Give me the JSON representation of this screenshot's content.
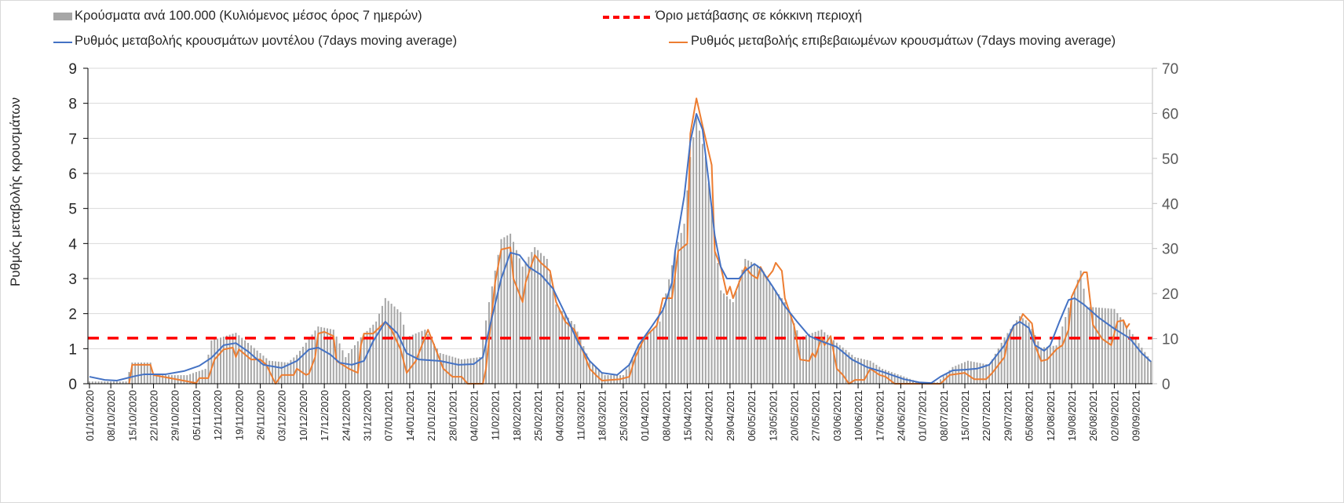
{
  "legend": {
    "bars": "Κρούσματα ανά 100.000 (Κυλιόμενος μέσος όρος 7 ημερών)",
    "threshold": "Όριο μετάβασης σε κόκκινη περιοχή",
    "model": "Ρυθμός μεταβολής κρουσμάτων μοντέλου (7days moving average)",
    "confirmed": "Ρυθμός μεταβολής επιβεβαιωμένων κρουσμάτων (7days moving average)"
  },
  "colors": {
    "bars": "#a6a6a6",
    "threshold": "#ff0000",
    "model": "#4472c4",
    "confirmed": "#ed7d31",
    "grid": "#d9d9d9",
    "axis_text": "#595959"
  },
  "chart_data": {
    "type": "bar+line",
    "title": "",
    "ylabel": "Ρυθμός μεταβολής κρουσμάτων",
    "ylabel_right": "",
    "xlabel": "",
    "x_unit": "days since 01/10/2020",
    "xlim": [
      -0.5,
      348.5
    ],
    "ylim_left": [
      0,
      9
    ],
    "ylim_right": [
      0,
      70
    ],
    "left_ticks": [
      "0",
      "1",
      "2",
      "3",
      "4",
      "5",
      "6",
      "7",
      "8",
      "9"
    ],
    "right_ticks": [
      "0",
      "10",
      "20",
      "30",
      "40",
      "50",
      "60",
      "70"
    ],
    "x_tick_step_days": 7,
    "x_ticks": [
      "01/10/2020",
      "08/10/2020",
      "15/10/2020",
      "22/10/2020",
      "29/10/2020",
      "05/11/2020",
      "12/11/2020",
      "19/11/2020",
      "26/11/2020",
      "03/12/2020",
      "10/12/2020",
      "17/12/2020",
      "24/12/2020",
      "31/12/2020",
      "07/01/2021",
      "14/01/2021",
      "21/01/2021",
      "28/01/2021",
      "04/02/2021",
      "11/02/2021",
      "18/02/2021",
      "25/02/2021",
      "04/03/2021",
      "11/03/2021",
      "18/03/2021",
      "25/03/2021",
      "01/04/2021",
      "08/04/2021",
      "15/04/2021",
      "22/04/2021",
      "29/04/2021",
      "06/05/2021",
      "13/05/2021",
      "20/05/2021",
      "27/05/2021",
      "03/06/2021",
      "10/06/2021",
      "17/06/2021",
      "24/06/2021",
      "01/07/2021",
      "08/07/2021",
      "15/07/2021",
      "22/07/2021",
      "29/07/2021",
      "05/08/2021",
      "12/08/2021",
      "19/08/2021",
      "26/08/2021",
      "02/09/2021",
      "09/09/2021"
    ],
    "threshold_left": 1.3,
    "bars_right_axis": {
      "last_day": 348,
      "points": [
        [
          0,
          0.5
        ],
        [
          12,
          0.5
        ],
        [
          14,
          4.7
        ],
        [
          20,
          4.7
        ],
        [
          21,
          1.9
        ],
        [
          32,
          1.9
        ],
        [
          38,
          3.3
        ],
        [
          40,
          9.6
        ],
        [
          48,
          11.3
        ],
        [
          53,
          8.5
        ],
        [
          59,
          5.1
        ],
        [
          65,
          4.7
        ],
        [
          68,
          6.4
        ],
        [
          75,
          12.7
        ],
        [
          80,
          12.0
        ],
        [
          84,
          5.9
        ],
        [
          89,
          10.3
        ],
        [
          94,
          13.8
        ],
        [
          97,
          19.0
        ],
        [
          102,
          15.9
        ],
        [
          104,
          10.3
        ],
        [
          110,
          12.0
        ],
        [
          115,
          6.8
        ],
        [
          122,
          5.4
        ],
        [
          128,
          5.9
        ],
        [
          131,
          18.1
        ],
        [
          135,
          32.1
        ],
        [
          138,
          33.3
        ],
        [
          142,
          26.0
        ],
        [
          146,
          30.3
        ],
        [
          150,
          27.7
        ],
        [
          153,
          17.6
        ],
        [
          159,
          13.2
        ],
        [
          164,
          5.1
        ],
        [
          169,
          1.9
        ],
        [
          175,
          1.9
        ],
        [
          180,
          8.5
        ],
        [
          187,
          13.8
        ],
        [
          192,
          29.4
        ],
        [
          195,
          35.5
        ],
        [
          197,
          50.3
        ],
        [
          199,
          59.1
        ],
        [
          202,
          50.3
        ],
        [
          205,
          32.9
        ],
        [
          207,
          20.7
        ],
        [
          211,
          18.1
        ],
        [
          215,
          27.7
        ],
        [
          220,
          26.0
        ],
        [
          224,
          21.6
        ],
        [
          228,
          18.1
        ],
        [
          233,
          10.3
        ],
        [
          240,
          12.0
        ],
        [
          245,
          9.1
        ],
        [
          251,
          5.9
        ],
        [
          256,
          5.1
        ],
        [
          260,
          3.3
        ],
        [
          267,
          1.6
        ],
        [
          272,
          0.3
        ],
        [
          278,
          0.3
        ],
        [
          283,
          3.7
        ],
        [
          288,
          5.1
        ],
        [
          295,
          4.2
        ],
        [
          300,
          10.3
        ],
        [
          305,
          15.0
        ],
        [
          308,
          13.6
        ],
        [
          312,
          8.0
        ],
        [
          317,
          8.5
        ],
        [
          322,
          19.0
        ],
        [
          325,
          25.1
        ],
        [
          327,
          17.1
        ],
        [
          336,
          16.6
        ],
        [
          341,
          12.0
        ],
        [
          345,
          8.0
        ],
        [
          348,
          5.1
        ]
      ]
    },
    "model_left_axis": [
      [
        0,
        0.2
      ],
      [
        5,
        0.11
      ],
      [
        9,
        0.09
      ],
      [
        15,
        0.22
      ],
      [
        18,
        0.27
      ],
      [
        25,
        0.27
      ],
      [
        31,
        0.36
      ],
      [
        36,
        0.51
      ],
      [
        40,
        0.74
      ],
      [
        44,
        1.1
      ],
      [
        48,
        1.16
      ],
      [
        52,
        0.92
      ],
      [
        57,
        0.54
      ],
      [
        63,
        0.45
      ],
      [
        68,
        0.65
      ],
      [
        72,
        0.98
      ],
      [
        75,
        1.03
      ],
      [
        79,
        0.83
      ],
      [
        82,
        0.6
      ],
      [
        86,
        0.54
      ],
      [
        90,
        0.65
      ],
      [
        93,
        1.21
      ],
      [
        97,
        1.77
      ],
      [
        101,
        1.43
      ],
      [
        104,
        0.87
      ],
      [
        108,
        0.69
      ],
      [
        115,
        0.65
      ],
      [
        121,
        0.54
      ],
      [
        126,
        0.56
      ],
      [
        129,
        0.76
      ],
      [
        131,
        1.54
      ],
      [
        135,
        3.0
      ],
      [
        138,
        3.74
      ],
      [
        141,
        3.67
      ],
      [
        144,
        3.33
      ],
      [
        148,
        3.11
      ],
      [
        152,
        2.71
      ],
      [
        156,
        1.99
      ],
      [
        160,
        1.21
      ],
      [
        164,
        0.65
      ],
      [
        168,
        0.31
      ],
      [
        173,
        0.25
      ],
      [
        177,
        0.54
      ],
      [
        180,
        1.1
      ],
      [
        184,
        1.59
      ],
      [
        188,
        2.1
      ],
      [
        191,
        2.89
      ],
      [
        192,
        3.78
      ],
      [
        195,
        5.35
      ],
      [
        197,
        6.91
      ],
      [
        199,
        7.7
      ],
      [
        201,
        7.25
      ],
      [
        203,
        5.79
      ],
      [
        205,
        4.23
      ],
      [
        207,
        3.33
      ],
      [
        209,
        3.0
      ],
      [
        213,
        3.0
      ],
      [
        215,
        3.22
      ],
      [
        218,
        3.42
      ],
      [
        220,
        3.29
      ],
      [
        224,
        2.77
      ],
      [
        228,
        2.21
      ],
      [
        232,
        1.77
      ],
      [
        236,
        1.36
      ],
      [
        240,
        1.21
      ],
      [
        245,
        1.05
      ],
      [
        250,
        0.69
      ],
      [
        255,
        0.47
      ],
      [
        260,
        0.34
      ],
      [
        267,
        0.13
      ],
      [
        272,
        0.04
      ],
      [
        276,
        0.02
      ],
      [
        279,
        0.2
      ],
      [
        283,
        0.38
      ],
      [
        287,
        0.4
      ],
      [
        291,
        0.43
      ],
      [
        295,
        0.54
      ],
      [
        300,
        1.1
      ],
      [
        303,
        1.66
      ],
      [
        305,
        1.77
      ],
      [
        308,
        1.59
      ],
      [
        310,
        1.1
      ],
      [
        313,
        0.94
      ],
      [
        315,
        1.1
      ],
      [
        318,
        1.77
      ],
      [
        321,
        2.39
      ],
      [
        323,
        2.44
      ],
      [
        326,
        2.26
      ],
      [
        331,
        1.88
      ],
      [
        336,
        1.57
      ],
      [
        341,
        1.3
      ],
      [
        345,
        0.87
      ],
      [
        348,
        0.63
      ]
    ],
    "confirmed_left_axis": [
      [
        13,
        0
      ],
      [
        14,
        0.54
      ],
      [
        20,
        0.54
      ],
      [
        21,
        0.25
      ],
      [
        35,
        0.02
      ],
      [
        36,
        0.16
      ],
      [
        39,
        0.16
      ],
      [
        41,
        0.69
      ],
      [
        44,
        0.98
      ],
      [
        47,
        1.03
      ],
      [
        48,
        0.76
      ],
      [
        49,
        0.98
      ],
      [
        53,
        0.69
      ],
      [
        56,
        0.69
      ],
      [
        58,
        0.54
      ],
      [
        61,
        0
      ],
      [
        63,
        0.25
      ],
      [
        67,
        0.25
      ],
      [
        68,
        0.43
      ],
      [
        71,
        0.25
      ],
      [
        72,
        0.29
      ],
      [
        74,
        0.76
      ],
      [
        75,
        1.43
      ],
      [
        77,
        1.48
      ],
      [
        80,
        1.36
      ],
      [
        81,
        0.65
      ],
      [
        85,
        0.43
      ],
      [
        88,
        0.31
      ],
      [
        89,
        1.1
      ],
      [
        90,
        1.43
      ],
      [
        93,
        1.43
      ],
      [
        97,
        1.77
      ],
      [
        99,
        1.54
      ],
      [
        102,
        0.98
      ],
      [
        104,
        0.31
      ],
      [
        107,
        0.65
      ],
      [
        110,
        1.32
      ],
      [
        111,
        1.54
      ],
      [
        113,
        1.1
      ],
      [
        116,
        0.43
      ],
      [
        119,
        0.2
      ],
      [
        122,
        0.2
      ],
      [
        124,
        0
      ],
      [
        129,
        0
      ],
      [
        130,
        0.43
      ],
      [
        133,
        2.89
      ],
      [
        135,
        3.83
      ],
      [
        138,
        3.89
      ],
      [
        139,
        3.0
      ],
      [
        142,
        2.33
      ],
      [
        143,
        2.89
      ],
      [
        146,
        3.67
      ],
      [
        148,
        3.45
      ],
      [
        151,
        3.22
      ],
      [
        153,
        2.33
      ],
      [
        156,
        1.77
      ],
      [
        159,
        1.54
      ],
      [
        161,
        1.1
      ],
      [
        164,
        0.43
      ],
      [
        166,
        0.25
      ],
      [
        168,
        0.09
      ],
      [
        174,
        0.13
      ],
      [
        177,
        0.2
      ],
      [
        179,
        0.76
      ],
      [
        182,
        1.32
      ],
      [
        186,
        1.66
      ],
      [
        188,
        2.44
      ],
      [
        191,
        2.44
      ],
      [
        193,
        3.78
      ],
      [
        196,
        4.0
      ],
      [
        197,
        7.14
      ],
      [
        199,
        8.14
      ],
      [
        201,
        7.36
      ],
      [
        204,
        6.24
      ],
      [
        205,
        3.78
      ],
      [
        207,
        3.33
      ],
      [
        209,
        2.55
      ],
      [
        210,
        2.77
      ],
      [
        211,
        2.44
      ],
      [
        213,
        2.89
      ],
      [
        215,
        3.33
      ],
      [
        217,
        3.11
      ],
      [
        219,
        3.0
      ],
      [
        220,
        3.33
      ],
      [
        222,
        3.0
      ],
      [
        224,
        3.22
      ],
      [
        225,
        3.45
      ],
      [
        227,
        3.22
      ],
      [
        228,
        2.44
      ],
      [
        231,
        1.66
      ],
      [
        233,
        0.69
      ],
      [
        236,
        0.65
      ],
      [
        237,
        0.87
      ],
      [
        238,
        0.76
      ],
      [
        240,
        1.32
      ],
      [
        241,
        1.1
      ],
      [
        243,
        1.36
      ],
      [
        245,
        0.43
      ],
      [
        247,
        0.25
      ],
      [
        249,
        0
      ],
      [
        251,
        0.11
      ],
      [
        254,
        0.11
      ],
      [
        256,
        0.43
      ],
      [
        259,
        0.25
      ],
      [
        261,
        0.2
      ],
      [
        264,
        0
      ],
      [
        279,
        0
      ],
      [
        282,
        0.25
      ],
      [
        287,
        0.31
      ],
      [
        290,
        0.13
      ],
      [
        294,
        0.13
      ],
      [
        296,
        0.31
      ],
      [
        300,
        0.76
      ],
      [
        301,
        1.21
      ],
      [
        303,
        1.66
      ],
      [
        305,
        1.77
      ],
      [
        306,
        1.99
      ],
      [
        309,
        1.72
      ],
      [
        310,
        1.1
      ],
      [
        312,
        0.65
      ],
      [
        314,
        0.69
      ],
      [
        317,
        0.98
      ],
      [
        319,
        1.1
      ],
      [
        321,
        1.54
      ],
      [
        322,
        2.48
      ],
      [
        325,
        3.04
      ],
      [
        326,
        3.18
      ],
      [
        327,
        3.18
      ],
      [
        329,
        1.68
      ],
      [
        332,
        1.28
      ],
      [
        335,
        1.1
      ],
      [
        337,
        1.77
      ],
      [
        339,
        1.81
      ],
      [
        340,
        1.59
      ],
      [
        341,
        1.72
      ]
    ],
    "legend_position": "top"
  }
}
